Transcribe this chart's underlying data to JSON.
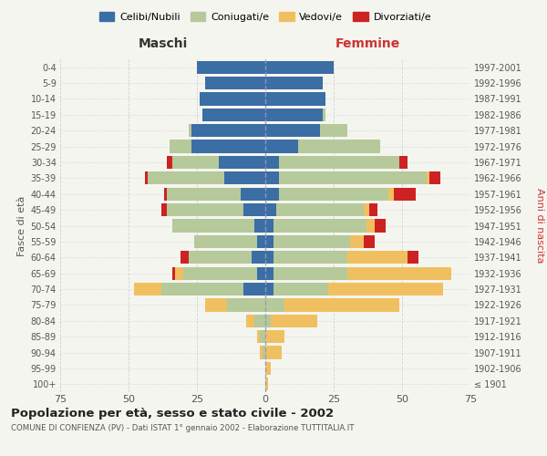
{
  "age_groups": [
    "100+",
    "95-99",
    "90-94",
    "85-89",
    "80-84",
    "75-79",
    "70-74",
    "65-69",
    "60-64",
    "55-59",
    "50-54",
    "45-49",
    "40-44",
    "35-39",
    "30-34",
    "25-29",
    "20-24",
    "15-19",
    "10-14",
    "5-9",
    "0-4"
  ],
  "birth_years": [
    "≤ 1901",
    "1902-1906",
    "1907-1911",
    "1912-1916",
    "1917-1921",
    "1922-1926",
    "1927-1931",
    "1932-1936",
    "1937-1941",
    "1942-1946",
    "1947-1951",
    "1952-1956",
    "1957-1961",
    "1962-1966",
    "1967-1971",
    "1972-1976",
    "1977-1981",
    "1982-1986",
    "1987-1991",
    "1992-1996",
    "1997-2001"
  ],
  "maschi": {
    "celibi": [
      0,
      0,
      0,
      0,
      0,
      0,
      8,
      3,
      5,
      3,
      4,
      8,
      9,
      15,
      17,
      27,
      27,
      23,
      24,
      22,
      25
    ],
    "coniugati": [
      0,
      0,
      1,
      2,
      4,
      14,
      30,
      27,
      23,
      23,
      30,
      28,
      27,
      28,
      17,
      8,
      1,
      0,
      0,
      0,
      0
    ],
    "vedovi": [
      0,
      0,
      1,
      1,
      3,
      8,
      10,
      3,
      0,
      0,
      0,
      0,
      0,
      0,
      0,
      0,
      0,
      0,
      0,
      0,
      0
    ],
    "divorziati": [
      0,
      0,
      0,
      0,
      0,
      0,
      0,
      1,
      3,
      0,
      0,
      2,
      1,
      1,
      2,
      0,
      0,
      0,
      0,
      0,
      0
    ]
  },
  "femmine": {
    "nubili": [
      0,
      0,
      0,
      0,
      0,
      0,
      3,
      3,
      3,
      3,
      3,
      4,
      5,
      5,
      5,
      12,
      20,
      21,
      22,
      21,
      25
    ],
    "coniugate": [
      0,
      0,
      0,
      0,
      2,
      7,
      20,
      27,
      27,
      28,
      34,
      32,
      40,
      54,
      44,
      30,
      10,
      1,
      0,
      0,
      0
    ],
    "vedove": [
      1,
      2,
      6,
      7,
      17,
      42,
      42,
      38,
      22,
      5,
      3,
      2,
      2,
      1,
      0,
      0,
      0,
      0,
      0,
      0,
      0
    ],
    "divorziate": [
      0,
      0,
      0,
      0,
      0,
      0,
      0,
      0,
      4,
      4,
      4,
      3,
      8,
      4,
      3,
      0,
      0,
      0,
      0,
      0,
      0
    ]
  },
  "color_celibi": "#3a6ea5",
  "color_coniugati": "#b5c99a",
  "color_vedovi": "#f0c060",
  "color_divorziati": "#cc2222",
  "bg_color": "#f5f5f0",
  "grid_color": "#cccccc",
  "title": "Popolazione per età, sesso e stato civile - 2002",
  "subtitle": "COMUNE DI CONFIENZA (PV) - Dati ISTAT 1° gennaio 2002 - Elaborazione TUTTITALIA.IT",
  "xlabel_left": "Maschi",
  "xlabel_right": "Femmine",
  "ylabel_left": "Fasce di età",
  "ylabel_right": "Anni di nascita",
  "xlim": 75,
  "legend_labels": [
    "Celibi/Nubili",
    "Coniugati/e",
    "Vedovi/e",
    "Divorziati/e"
  ]
}
